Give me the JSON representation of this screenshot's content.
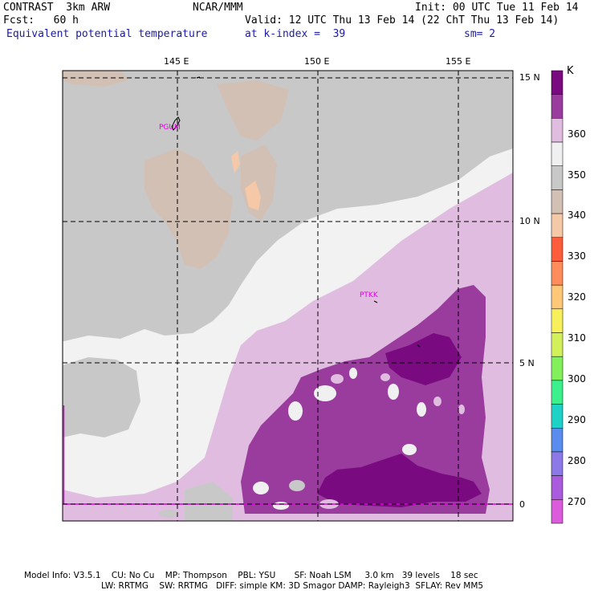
{
  "header": {
    "model": "CONTRAST  3km ARW",
    "center": "NCAR/MMM",
    "init": "Init: 00 UTC Tue 11 Feb 14",
    "fcst": "Fcst:   60 h",
    "valid": "Valid: 12 UTC Thu 13 Feb 14 (22 ChT Thu 13 Feb 14)",
    "field": "Equivalent potential temperature",
    "level": "at k-index =  39",
    "smooth": "sm= 2"
  },
  "map": {
    "lon_labels": [
      "145 E",
      "150 E",
      "155 E"
    ],
    "lat_labels": [
      "15 N",
      "10 N",
      "5 N",
      "0"
    ],
    "stations": [
      "PGUM",
      "PTKK"
    ]
  },
  "colorbar": {
    "unit": "K",
    "labels": [
      "360",
      "350",
      "340",
      "330",
      "320",
      "310",
      "300",
      "290",
      "280",
      "270"
    ],
    "colors": [
      "#7a0a80",
      "#9a3c9e",
      "#e0bde0",
      "#f0f0f0",
      "#c8c8c8",
      "#d2c0b4",
      "#f5c8a8",
      "#ff5c3c",
      "#ff8c5a",
      "#ffc878",
      "#f8f05a",
      "#d2f05a",
      "#82f05a",
      "#3cf08c",
      "#1ed2c8",
      "#5a8cf0",
      "#8c78e6",
      "#aa5adc",
      "#dc5adc"
    ]
  },
  "footer": {
    "line1": "Model Info: V3.5.1    CU: No Cu    MP: Thompson    PBL: YSU       SF: Noah LSM     3.0 km   39 levels    18 sec",
    "line2": "LW: RRTMG    SW: RRTMG   DIFF: simple KM: 3D Smagor DAMP: Rayleigh3  SFLAY: Rev MM5"
  }
}
